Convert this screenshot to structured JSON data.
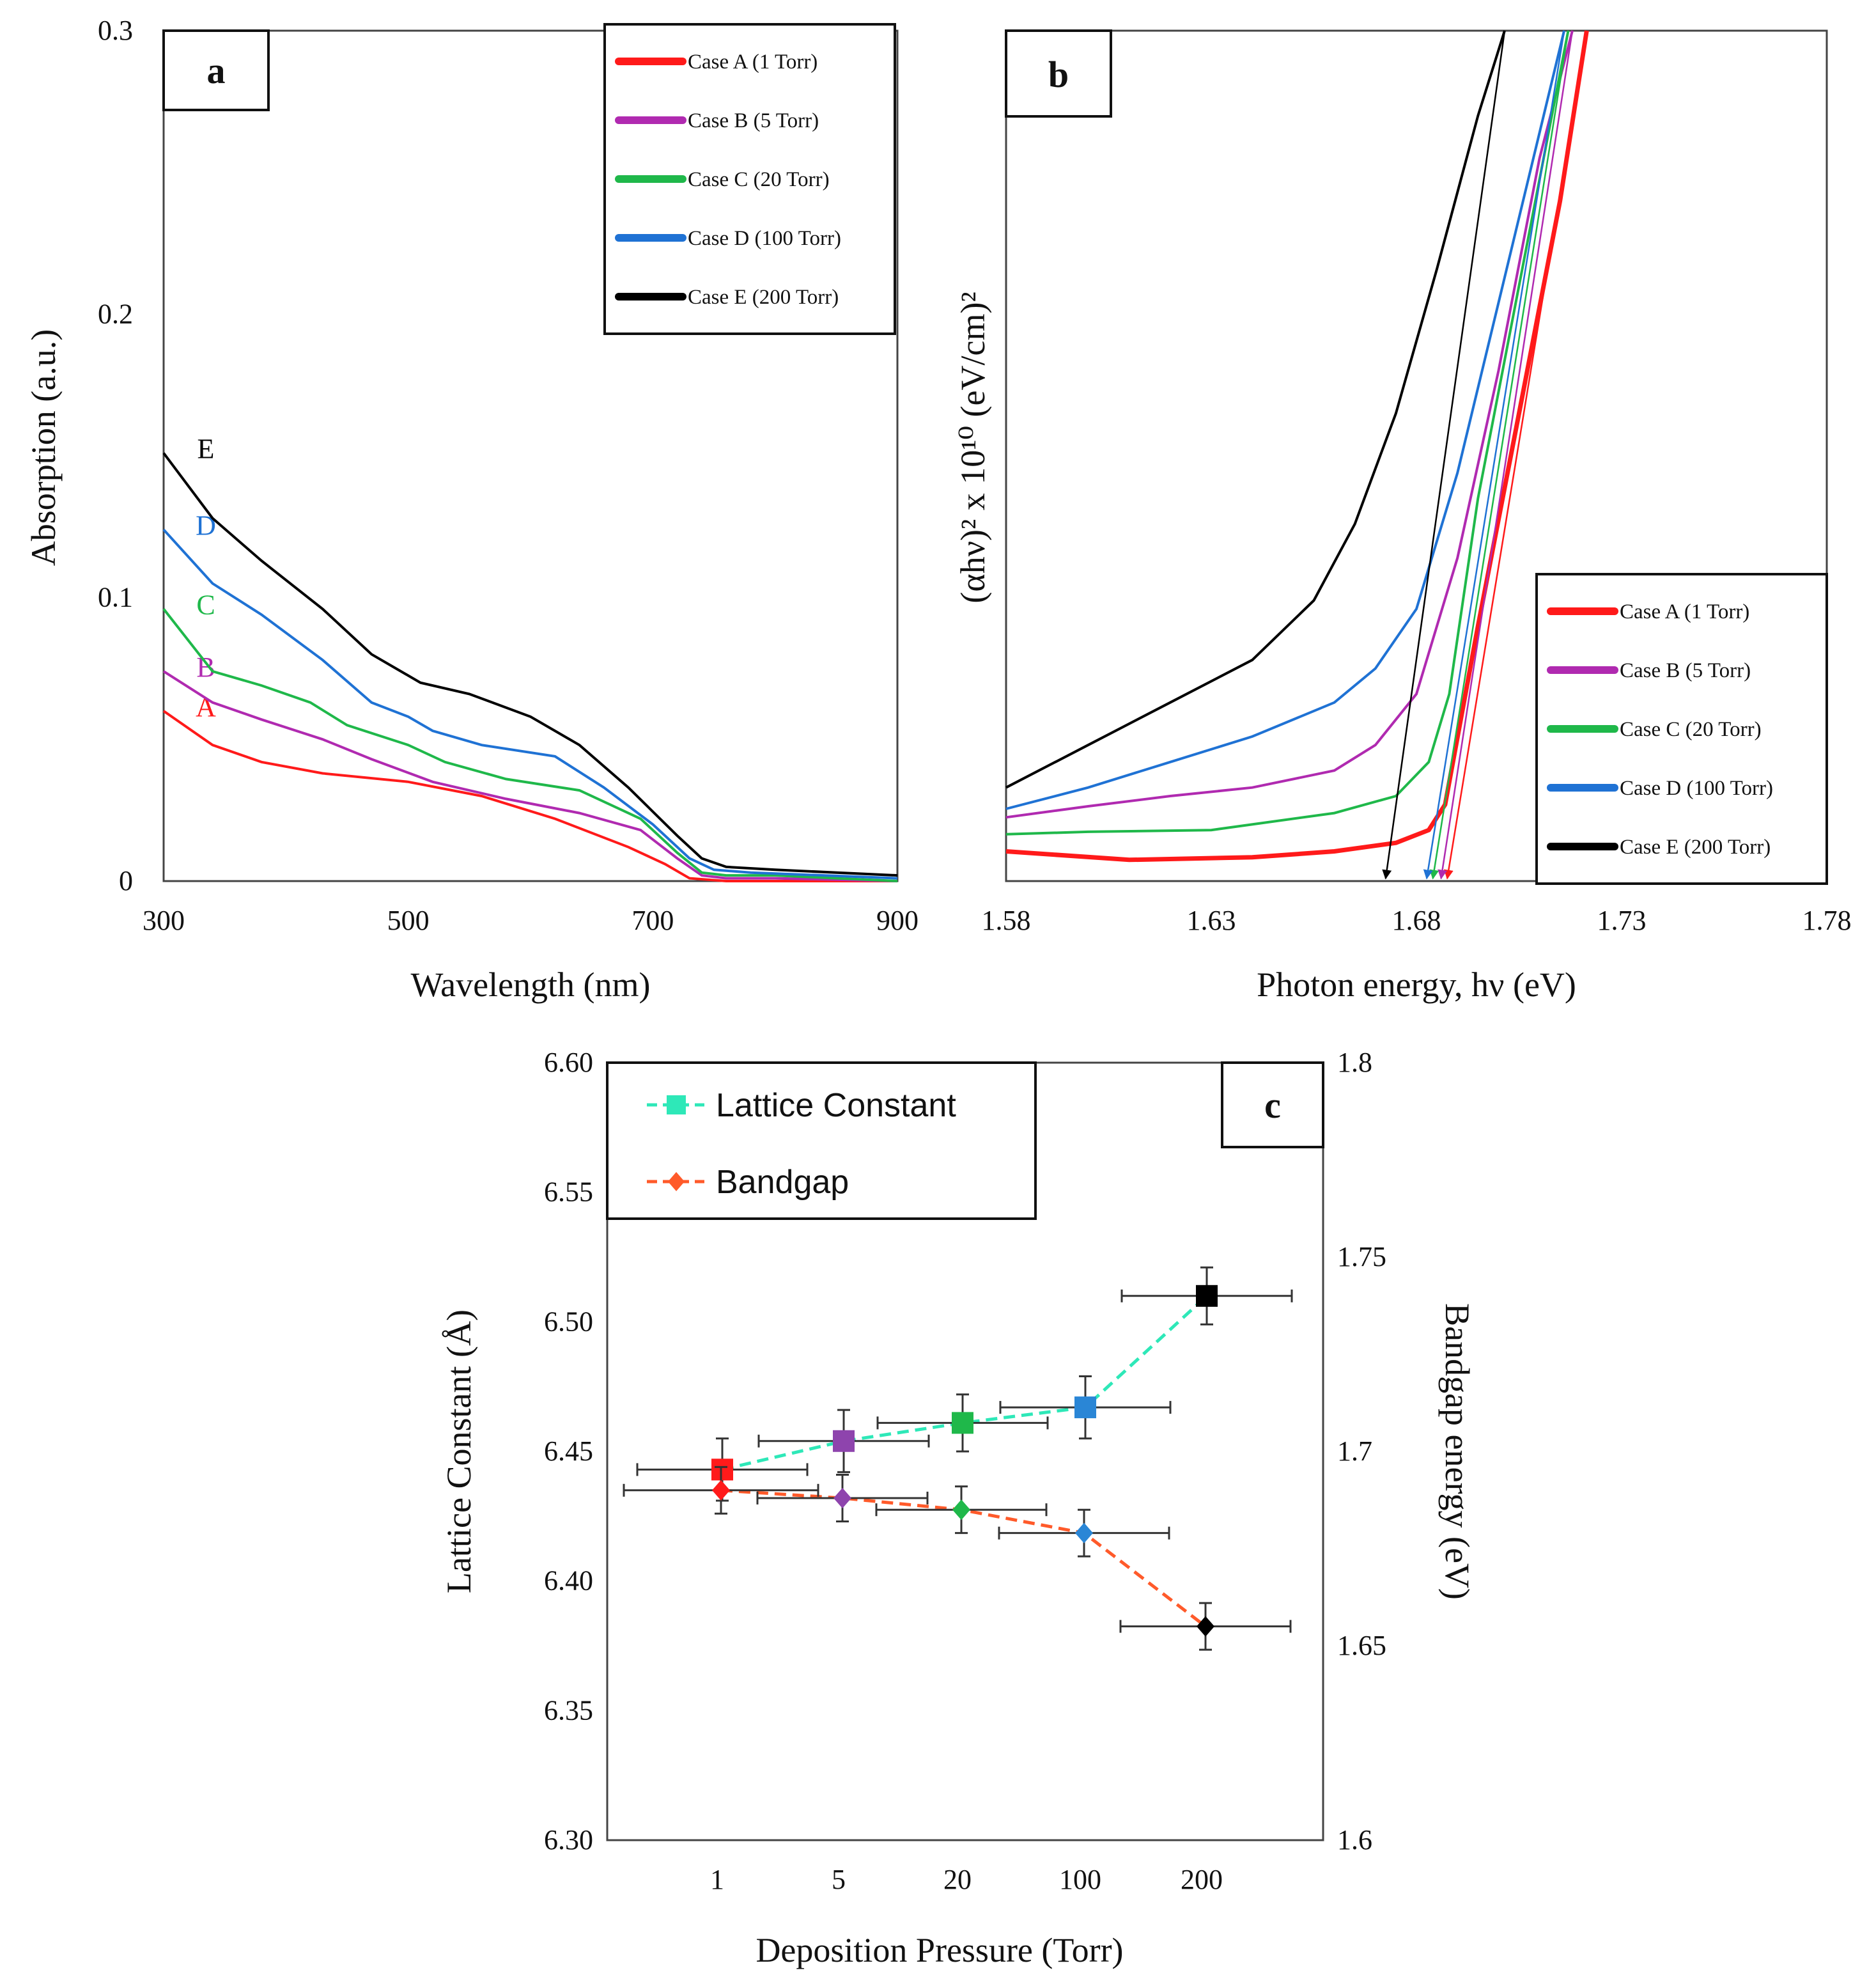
{
  "chart_data": [
    {
      "panel": "a",
      "type": "line",
      "xlabel": "Wavelength (nm)",
      "ylabel": "Absorption (a.u.)",
      "xlim": [
        300,
        900
      ],
      "ylim": [
        0,
        0.3
      ],
      "xticks": [
        "300",
        "500",
        "700",
        "900"
      ],
      "yticks": [
        "0",
        "0.1",
        "0.2",
        "0.3"
      ],
      "legend_position": "top-right",
      "series": [
        {
          "name": "Case A (1 Torr)",
          "label": "A",
          "color": "#ff1a1a",
          "x": [
            300,
            340,
            380,
            430,
            500,
            560,
            620,
            680,
            710,
            730,
            760,
            800,
            900
          ],
          "y": [
            0.06,
            0.048,
            0.042,
            0.038,
            0.035,
            0.03,
            0.022,
            0.012,
            0.006,
            0.001,
            0.0,
            0.0,
            0.0
          ]
        },
        {
          "name": "Case B (5 Torr)",
          "label": "B",
          "color": "#b02ab0",
          "x": [
            300,
            340,
            380,
            430,
            470,
            520,
            580,
            640,
            690,
            720,
            740,
            760,
            800,
            900
          ],
          "y": [
            0.074,
            0.063,
            0.057,
            0.05,
            0.043,
            0.035,
            0.029,
            0.024,
            0.018,
            0.008,
            0.002,
            0.001,
            0.001,
            0.0
          ]
        },
        {
          "name": "Case C (20 Torr)",
          "label": "C",
          "color": "#1fb84a",
          "x": [
            300,
            340,
            380,
            420,
            450,
            500,
            530,
            580,
            640,
            690,
            720,
            740,
            760,
            800,
            900
          ],
          "y": [
            0.096,
            0.074,
            0.069,
            0.063,
            0.055,
            0.048,
            0.042,
            0.036,
            0.032,
            0.022,
            0.01,
            0.003,
            0.002,
            0.002,
            0.0
          ]
        },
        {
          "name": "Case D (100 Torr)",
          "label": "D",
          "color": "#1f72d4",
          "x": [
            300,
            340,
            380,
            430,
            470,
            500,
            520,
            560,
            620,
            660,
            700,
            730,
            750,
            780,
            900
          ],
          "y": [
            0.124,
            0.105,
            0.094,
            0.078,
            0.063,
            0.058,
            0.053,
            0.048,
            0.044,
            0.033,
            0.02,
            0.008,
            0.004,
            0.003,
            0.001
          ]
        },
        {
          "name": "Case E (200 Torr)",
          "label": "E",
          "color": "#000000",
          "x": [
            300,
            340,
            380,
            430,
            470,
            490,
            510,
            550,
            600,
            640,
            680,
            720,
            740,
            760,
            800,
            900
          ],
          "y": [
            0.151,
            0.128,
            0.113,
            0.096,
            0.08,
            0.075,
            0.07,
            0.066,
            0.058,
            0.048,
            0.033,
            0.016,
            0.008,
            0.005,
            0.004,
            0.002
          ]
        }
      ]
    },
    {
      "panel": "b",
      "type": "line",
      "xlabel": "Photon energy, hν (eV)",
      "ylabel": "(αhν)² x 10¹⁰ (eV/cm)²",
      "xlim": [
        1.58,
        1.78
      ],
      "ylim": [
        0,
        1
      ],
      "xticks": [
        "1.58",
        "1.63",
        "1.68",
        "1.73",
        "1.78"
      ],
      "legend_position": "bottom-right",
      "series": [
        {
          "name": "Case A (1 Torr)",
          "color": "#ff1a1a",
          "intercept_eV": 1.6875,
          "x": [
            1.58,
            1.61,
            1.64,
            1.66,
            1.675,
            1.683,
            1.687,
            1.695,
            1.705,
            1.715,
            1.7215
          ],
          "y": [
            0.035,
            0.025,
            0.028,
            0.035,
            0.045,
            0.06,
            0.09,
            0.3,
            0.55,
            0.8,
            1.0
          ]
        },
        {
          "name": "Case B (5 Torr)",
          "color": "#b02ab0",
          "intercept_eV": 1.686,
          "x": [
            1.58,
            1.6,
            1.62,
            1.64,
            1.66,
            1.67,
            1.68,
            1.69,
            1.7,
            1.71,
            1.718
          ],
          "y": [
            0.075,
            0.088,
            0.1,
            0.11,
            0.13,
            0.16,
            0.22,
            0.38,
            0.6,
            0.85,
            1.0
          ]
        },
        {
          "name": "Case C (20 Torr)",
          "color": "#1fb84a",
          "intercept_eV": 1.684,
          "x": [
            1.58,
            1.6,
            1.63,
            1.66,
            1.675,
            1.683,
            1.688,
            1.695,
            1.705,
            1.717
          ],
          "y": [
            0.055,
            0.058,
            0.06,
            0.08,
            0.1,
            0.14,
            0.22,
            0.45,
            0.7,
            1.0
          ]
        },
        {
          "name": "Case D (100 Torr)",
          "color": "#1f72d4",
          "intercept_eV": 1.6825,
          "x": [
            1.58,
            1.6,
            1.62,
            1.64,
            1.66,
            1.67,
            1.68,
            1.69,
            1.7,
            1.716
          ],
          "y": [
            0.085,
            0.11,
            0.14,
            0.17,
            0.21,
            0.25,
            0.32,
            0.48,
            0.68,
            1.0
          ]
        },
        {
          "name": "Case E (200 Torr)",
          "color": "#000000",
          "intercept_eV": 1.6725,
          "x": [
            1.58,
            1.6,
            1.62,
            1.64,
            1.655,
            1.665,
            1.675,
            1.685,
            1.695,
            1.7015
          ],
          "y": [
            0.11,
            0.16,
            0.21,
            0.26,
            0.33,
            0.42,
            0.55,
            0.72,
            0.9,
            1.0
          ]
        }
      ]
    },
    {
      "panel": "c",
      "type": "scatter",
      "xlabel": "Deposition Pressure (Torr)",
      "ylabel": "Lattice Constant (Å)",
      "y2label": "Bandgap energy (eV)",
      "categories": [
        "1",
        "5",
        "20",
        "100",
        "200"
      ],
      "ylim": [
        6.3,
        6.6
      ],
      "y2lim": [
        1.6,
        1.8
      ],
      "yticks": [
        "6.30",
        "6.35",
        "6.40",
        "6.45",
        "6.50",
        "6.55",
        "6.60"
      ],
      "y2ticks": [
        "1.6",
        "1.65",
        "1.7",
        "1.75",
        "1.8"
      ],
      "legend_position": "top-left",
      "point_colors": [
        "#ff1a1a",
        "#8e44ad",
        "#1fb84a",
        "#2a86d6",
        "#000000"
      ],
      "series": [
        {
          "name": "Lattice Constant",
          "marker": "square",
          "axis": "left",
          "line_color": "#2ee8b8",
          "values": [
            6.443,
            6.454,
            6.461,
            6.467,
            6.51
          ],
          "y_err": [
            0.012,
            0.012,
            0.011,
            0.012,
            0.011
          ],
          "x_err": [
            0.7,
            0.7,
            0.7,
            0.7,
            0.7
          ]
        },
        {
          "name": "Bandgap",
          "marker": "diamond",
          "axis": "right",
          "line_color": "#ff5a2a",
          "values": [
            1.69,
            1.688,
            1.685,
            1.679,
            1.655
          ],
          "y_err": [
            0.006,
            0.006,
            0.006,
            0.006,
            0.006
          ],
          "x_err": [
            0.8,
            0.7,
            0.7,
            0.7,
            0.7
          ]
        }
      ]
    }
  ],
  "panel_labels": {
    "a": "a",
    "b": "b",
    "c": "c"
  },
  "curve_labels": {
    "A": "A",
    "B": "B",
    "C": "C",
    "D": "D",
    "E": "E"
  }
}
